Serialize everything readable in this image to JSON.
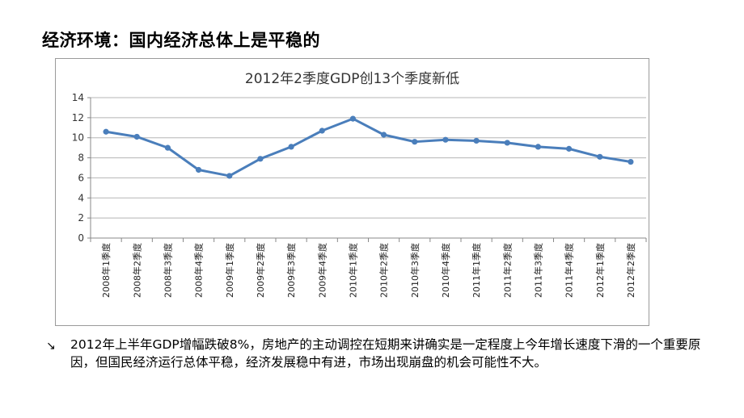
{
  "slide": {
    "title": "经济环境：国内经济总体上是平稳的",
    "body": "2012年上半年GDP增幅跌破8%，房地产的主动调控在短期来讲确实是一定程度上今年增长速度下滑的一个重要原因，但国民经济运行总体平稳，经济发展稳中有进，市场出现崩盘的机会可能性不大。",
    "bullet_icon": "arrow-down-right-icon"
  },
  "chart_data": {
    "type": "line",
    "title": "2012年2季度GDP创13个季度新低",
    "categories": [
      "2008年1季度",
      "2008年2季度",
      "2008年3季度",
      "2008年4季度",
      "2009年1季度",
      "2009年2季度",
      "2009年3季度",
      "2009年4季度",
      "2010年1季度",
      "2010年2季度",
      "2010年3季度",
      "2010年4季度",
      "2011年1季度",
      "2011年2季度",
      "2011年3季度",
      "2011年4季度",
      "2012年1季度",
      "2012年2季度"
    ],
    "series": [
      {
        "values": [
          10.6,
          10.1,
          9.0,
          6.8,
          6.2,
          7.9,
          9.1,
          10.7,
          11.9,
          10.3,
          9.6,
          9.8,
          9.7,
          9.5,
          9.1,
          8.9,
          8.1,
          7.6
        ]
      }
    ],
    "yticks": [
      "0",
      "2",
      "4",
      "6",
      "8",
      "10",
      "12",
      "14"
    ],
    "ylim": [
      0,
      14
    ],
    "grid": true,
    "line_color": "#4a7ebb",
    "legend": "none"
  }
}
